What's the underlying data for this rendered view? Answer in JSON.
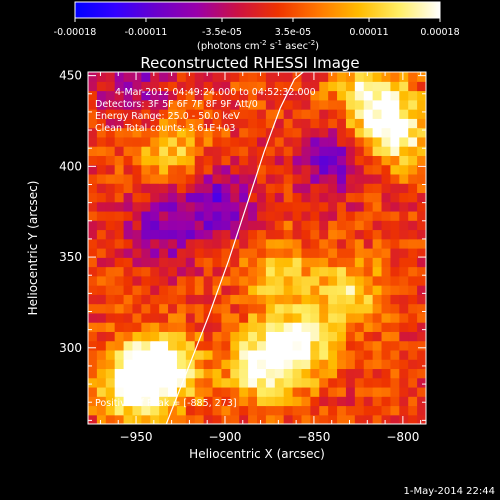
{
  "colorbar": {
    "tick_labels": [
      "-0.00018",
      "-0.00011",
      "-3.5e-05",
      "3.5e-05",
      "0.00011",
      "0.00018"
    ],
    "tick_values": [
      -0.00018,
      -0.00011,
      -3.5e-05,
      3.5e-05,
      0.00011,
      0.00018
    ],
    "range": [
      -0.00018,
      0.00018
    ],
    "units": "(photons cm",
    "units_sup1": "-2",
    "units_mid1": " s",
    "units_sup2": "-1",
    "units_mid2": " asec",
    "units_sup3": "-2",
    "units_end": ")",
    "colors": [
      "#0000ff",
      "#3300ff",
      "#6a00cc",
      "#9900aa",
      "#cc1144",
      "#ee3300",
      "#ff7700",
      "#ffbb00",
      "#ffee66",
      "#ffffff"
    ]
  },
  "chart_data": {
    "type": "heatmap",
    "title": "Reconstructed RHESSI Image",
    "xlabel": "Heliocentric X (arcsec)",
    "ylabel": "Heliocentric Y (arcsec)",
    "xlim": [
      -977,
      -787
    ],
    "ylim": [
      258,
      452
    ],
    "xticks": [
      -950,
      -900,
      -850,
      -800
    ],
    "yticks": [
      300,
      350,
      400,
      450
    ],
    "xtick_labels": [
      "−950",
      "−900",
      "−850",
      "−800"
    ],
    "ytick_labels": [
      "300",
      "350",
      "400",
      "450"
    ],
    "limb_curve": {
      "x": [
        -933,
        -921,
        -909,
        -898,
        -888,
        -878,
        -869,
        -861,
        -856
      ],
      "y": [
        258,
        288,
        318,
        348,
        378,
        408,
        432,
        448,
        452
      ]
    },
    "annotations": [
      "4-Mar-2012 04:49:24.000 to 04:52:32.000",
      "Detectors: 3F 5F 6F 7F 8F 9F Att/0",
      "Energy Range: 25.0 - 50.0 keV",
      "Clean     Total counts: 3.61E+03"
    ],
    "bottom_annotation": "Positive of Peak = [-885, 273]",
    "bright_regions": [
      {
        "x": -950,
        "y": 280,
        "value": 0.00018
      },
      {
        "x": -935,
        "y": 290,
        "value": 0.00016
      },
      {
        "x": -860,
        "y": 300,
        "value": 0.00015
      },
      {
        "x": -880,
        "y": 290,
        "value": 0.00014
      },
      {
        "x": -805,
        "y": 420,
        "value": 0.00016
      },
      {
        "x": -820,
        "y": 440,
        "value": 0.00012
      },
      {
        "x": -830,
        "y": 330,
        "value": 0.00011
      },
      {
        "x": -870,
        "y": 340,
        "value": 0.0001
      },
      {
        "x": -930,
        "y": 410,
        "value": 9e-05
      }
    ],
    "dark_regions": [
      {
        "x": -905,
        "y": 380,
        "value": -0.00011
      },
      {
        "x": -935,
        "y": 365,
        "value": -9e-05
      },
      {
        "x": -840,
        "y": 405,
        "value": -0.0001
      },
      {
        "x": -950,
        "y": 445,
        "value": -8e-05
      }
    ]
  },
  "timestamp": "1-May-2014 22:44"
}
